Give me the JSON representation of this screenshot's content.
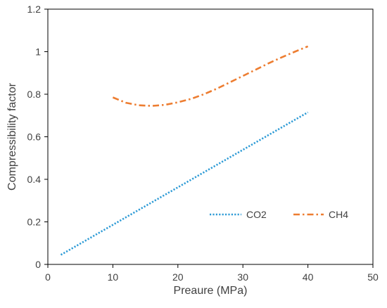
{
  "chart_data": {
    "type": "line",
    "title": "",
    "xlabel": "Preaure (MPa)",
    "ylabel": "Compressibility factor",
    "xlim": [
      0,
      50
    ],
    "ylim": [
      0,
      1.2
    ],
    "x_ticks": [
      "0",
      "10",
      "20",
      "30",
      "40",
      "50"
    ],
    "y_ticks": [
      "0",
      "0.2",
      "0.4",
      "0.6",
      "0.8",
      "1",
      "1.2"
    ],
    "grid": false,
    "legend_position": "lower-right",
    "series": [
      {
        "name": "CO2",
        "color": "#2E9BD6",
        "line_style": "dotted",
        "x": [
          2,
          40
        ],
        "y": [
          0.045,
          0.715
        ]
      },
      {
        "name": "CH4",
        "color": "#ED7D31",
        "line_style": "dash-dot",
        "x": [
          10,
          12,
          14,
          16,
          18,
          20,
          22,
          24,
          26,
          28,
          30,
          32,
          34,
          36,
          38,
          40
        ],
        "y": [
          0.785,
          0.76,
          0.748,
          0.745,
          0.75,
          0.762,
          0.778,
          0.8,
          0.826,
          0.856,
          0.886,
          0.916,
          0.946,
          0.974,
          1.0,
          1.025
        ]
      }
    ]
  }
}
